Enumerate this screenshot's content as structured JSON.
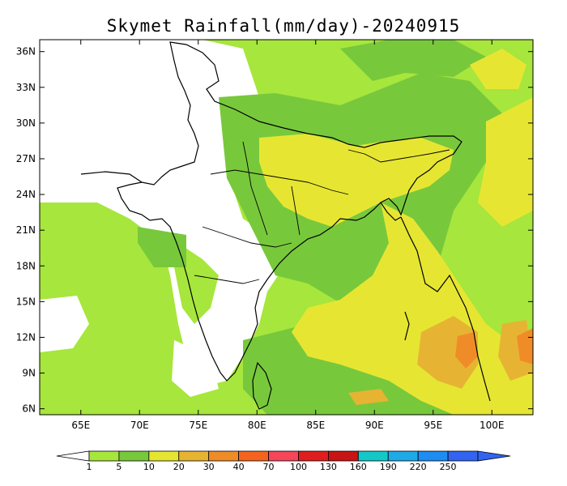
{
  "title": "Skymet Rainfall(mm/day)-20240915",
  "map": {
    "lon_labels": [
      "65E",
      "70E",
      "75E",
      "80E",
      "85E",
      "90E",
      "95E",
      "100E"
    ],
    "lat_labels": [
      "6N",
      "9N",
      "12N",
      "15N",
      "18N",
      "21N",
      "24N",
      "27N",
      "30N",
      "33N",
      "36N"
    ],
    "lon_values": [
      65,
      70,
      75,
      80,
      85,
      90,
      95,
      100
    ],
    "lat_values": [
      6,
      9,
      12,
      15,
      18,
      21,
      24,
      27,
      30,
      33,
      36
    ],
    "lon_range": [
      61.5,
      103.5
    ],
    "lat_range": [
      5.5,
      37
    ]
  },
  "colorbar": {
    "labels": [
      "1",
      "5",
      "10",
      "20",
      "30",
      "40",
      "70",
      "100",
      "130",
      "160",
      "190",
      "220",
      "250"
    ],
    "colors": [
      "#ffffff",
      "#a7e63c",
      "#78c83c",
      "#e6e632",
      "#e6b432",
      "#f08c28",
      "#f5641e",
      "#f5465a",
      "#e11e1e",
      "#c81414",
      "#14c8c8",
      "#1eaae6",
      "#1e8cf0",
      "#3264f0"
    ]
  },
  "colors": {
    "light_green": "#a7e63c",
    "mid_green": "#78c83c",
    "yellow": "#e6e632",
    "orange": "#e6b432",
    "dark_orange": "#f08c28"
  }
}
